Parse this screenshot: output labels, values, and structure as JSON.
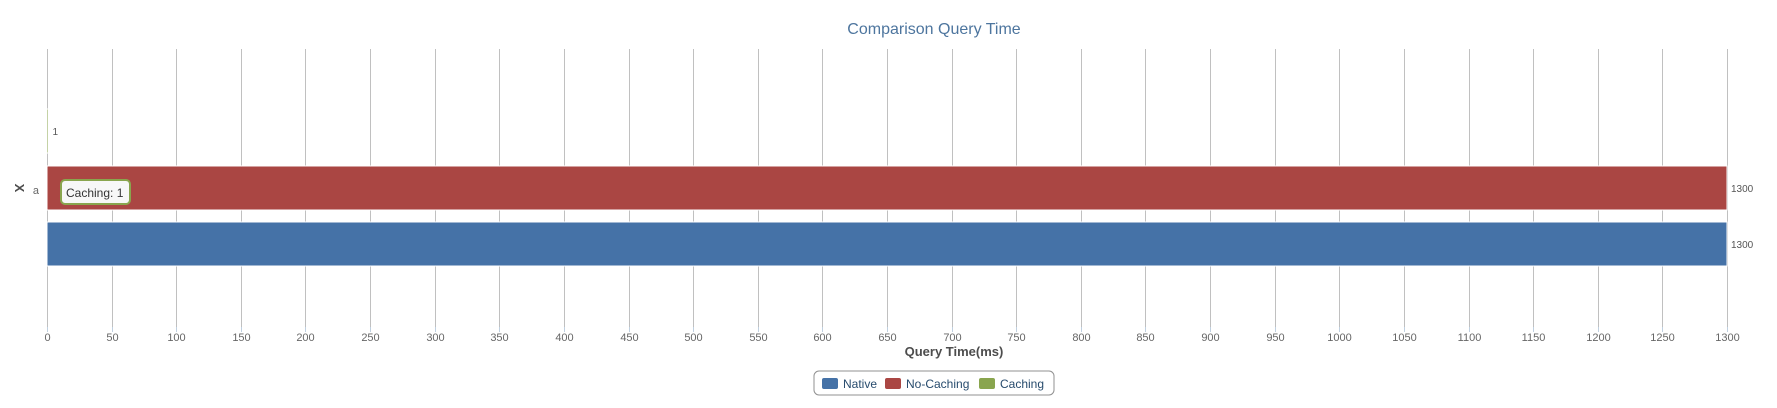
{
  "chart_data": {
    "type": "bar",
    "orientation": "horizontal",
    "title": "Comparison Query Time",
    "xlabel": "Query Time(ms)",
    "ylabel": "X",
    "categories": [
      "a"
    ],
    "xlim": [
      0,
      1300
    ],
    "xticks": [
      0,
      50,
      100,
      150,
      200,
      250,
      300,
      350,
      400,
      450,
      500,
      550,
      600,
      650,
      700,
      750,
      800,
      850,
      900,
      950,
      1000,
      1050,
      1100,
      1150,
      1200,
      1250,
      1300
    ],
    "grid": true,
    "legend_position": "bottom-center",
    "series": [
      {
        "name": "Native",
        "color": "#4572a7",
        "values": [
          1300
        ]
      },
      {
        "name": "No-Caching",
        "color": "#aa4643",
        "values": [
          1300
        ]
      },
      {
        "name": "Caching",
        "color": "#89a54e",
        "values": [
          1
        ]
      }
    ],
    "tooltip": {
      "text": "Caching: 1"
    }
  }
}
